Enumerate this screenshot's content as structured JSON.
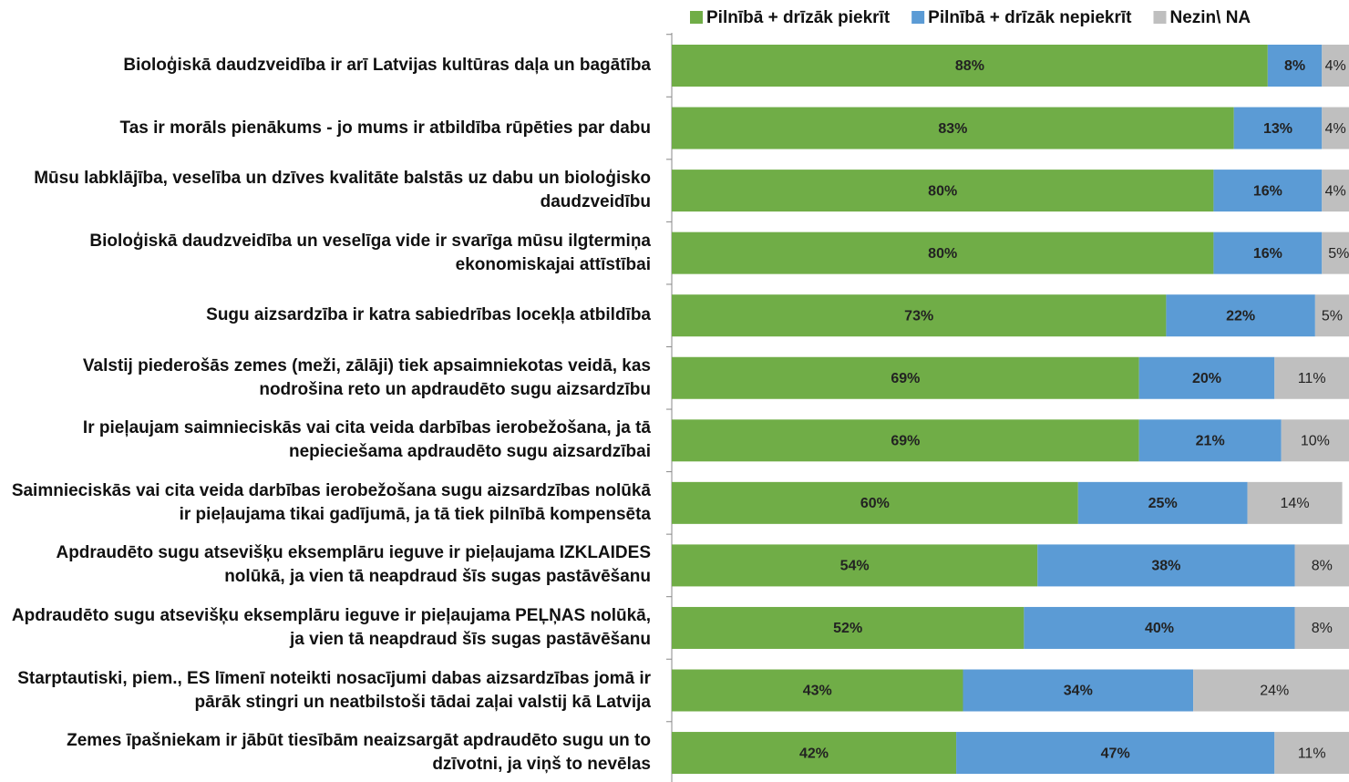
{
  "chart_data": {
    "type": "stacked-bar-horizontal",
    "categories": [
      "Bioloģiskā daudzveidība ir arī Latvijas kultūras daļa un bagātība",
      "Tas ir morāls pienākums - jo mums ir atbildība rūpēties par dabu",
      "Mūsu labklājība, veselība un dzīves kvalitāte balstās uz dabu un bioloģisko daudzveidību",
      "Bioloģiskā daudzveidība un veselīga vide ir svarīga mūsu ilgtermiņa ekonomiskajai attīstībai",
      "Sugu aizsardzība ir katra sabiedrības locekļa atbildība",
      "Valstij piederošās zemes (meži, zālāji) tiek apsaimniekotas veidā, kas nodrošina reto un apdraudēto sugu aizsardzību",
      "Ir pieļaujam saimnieciskās vai cita veida darbības ierobežošana, ja tā nepieciešama apdraudēto sugu aizsardzībai",
      "Saimnieciskās vai cita veida darbības ierobežošana sugu aizsardzības nolūkā ir pieļaujama tikai gadījumā, ja tā tiek pilnībā kompensēta",
      "Apdraudēto sugu atsevišķu eksemplāru ieguve ir pieļaujama IZKLAIDES nolūkā, ja vien tā neapdraud šīs sugas pastāvēšanu",
      "Apdraudēto sugu atsevišķu eksemplāru ieguve ir pieļaujama PEĻŅAS nolūkā, ja vien tā neapdraud šīs sugas pastāvēšanu",
      "Starptautiski, piem., ES līmenī noteikti nosacījumi dabas aizsardzības jomā ir pārāk stingri un neatbilstoši tādai zaļai valstij kā Latvija",
      "Zemes īpašniekam ir jābūt tiesībām neaizsargāt apdraudēto sugu un to dzīvotni, ja viņš to nevēlas"
    ],
    "series": [
      {
        "name": "Pilnībā + drīzāk piekrīt",
        "color": "#70ad47",
        "values": [
          88,
          83,
          80,
          80,
          73,
          69,
          69,
          60,
          54,
          52,
          43,
          42
        ],
        "value_labels": [
          "88%",
          "83%",
          "80%",
          "80%",
          "73%",
          "69%",
          "69%",
          "60%",
          "54%",
          "52%",
          "43%",
          "42%"
        ]
      },
      {
        "name": "Pilnībā + drīzāk nepiekrīt",
        "color": "#5b9bd5",
        "values": [
          8,
          13,
          16,
          16,
          22,
          20,
          21,
          25,
          38,
          40,
          34,
          47
        ],
        "value_labels": [
          "8%",
          "13%",
          "16%",
          "16%",
          "22%",
          "20%",
          "21%",
          "25%",
          "38%",
          "40%",
          "34%",
          "47%"
        ]
      },
      {
        "name": "Nezin\\ NA",
        "color": "#bfbfbf",
        "values": [
          4,
          4,
          4,
          5,
          5,
          11,
          10,
          14,
          8,
          8,
          24,
          11
        ],
        "value_labels": [
          "4%",
          "4%",
          "4%",
          "5%",
          "5%",
          "11%",
          "10%",
          "14%",
          "8%",
          "8%",
          "24%",
          "11%"
        ]
      }
    ],
    "xlim": [
      0,
      101
    ]
  }
}
